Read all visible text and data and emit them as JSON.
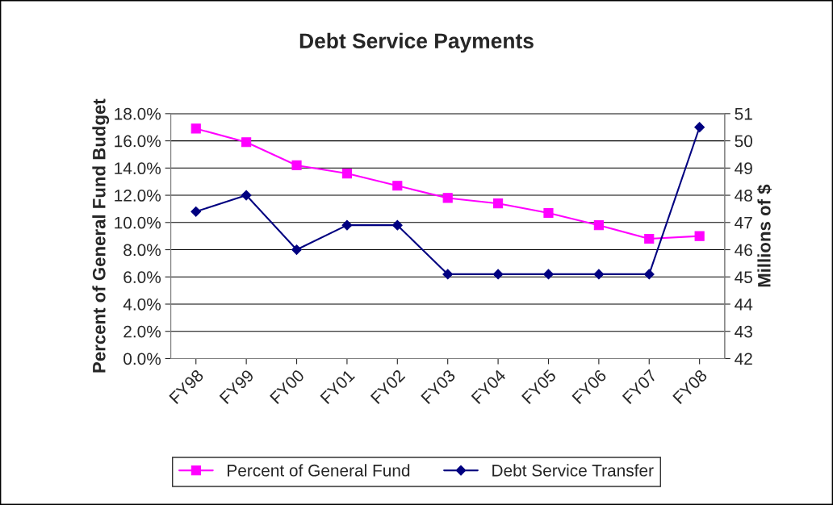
{
  "chart_data": {
    "type": "line",
    "title": "Debt Service Payments",
    "ylabel": "Percent of General Fund Budget",
    "y2label": "Millions of $",
    "categories": [
      "FY98",
      "FY99",
      "FY00",
      "FY01",
      "FY02",
      "FY03",
      "FY04",
      "FY05",
      "FY06",
      "FY07",
      "FY08"
    ],
    "series": [
      {
        "name": "Percent of General Fund",
        "color": "#ff00ff",
        "marker": "square",
        "values": [
          16.9,
          15.9,
          14.2,
          13.6,
          12.7,
          11.8,
          11.4,
          10.7,
          9.8,
          8.8,
          9.0
        ]
      },
      {
        "name": "Debt Service Transfer",
        "color": "#000080",
        "marker": "diamond",
        "axis": "y2",
        "values": [
          47.4,
          48.0,
          46.0,
          46.9,
          46.9,
          45.1,
          45.1,
          45.1,
          45.1,
          45.1,
          50.5
        ]
      }
    ],
    "ylim": [
      0,
      18
    ],
    "yticks": [
      {
        "value": 0,
        "label": "0.0%"
      },
      {
        "value": 2,
        "label": "2.0%"
      },
      {
        "value": 4,
        "label": "4.0%"
      },
      {
        "value": 6,
        "label": "6.0%"
      },
      {
        "value": 8,
        "label": "8.0%"
      },
      {
        "value": 10,
        "label": "10.0%"
      },
      {
        "value": 12,
        "label": "12.0%"
      },
      {
        "value": 14,
        "label": "14.0%"
      },
      {
        "value": 16,
        "label": "16.0%"
      },
      {
        "value": 18,
        "label": "18.0%"
      }
    ],
    "y2lim": [
      42,
      51
    ],
    "y2ticks": [
      42,
      43,
      44,
      45,
      46,
      47,
      48,
      49,
      50,
      51
    ],
    "grid": "y",
    "legend": "bottom",
    "line_style": "solid"
  }
}
